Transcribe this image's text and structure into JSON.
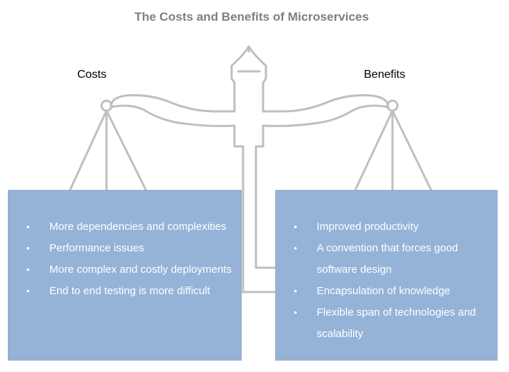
{
  "title": "The Costs and Benefits of Microservices",
  "costs": {
    "label": "Costs",
    "items": [
      "More dependencies and complexities",
      "Performance issues",
      "More complex and costly deployments",
      "End to end testing is more difficult"
    ]
  },
  "benefits": {
    "label": "Benefits",
    "items": [
      "Improved productivity",
      "A convention that forces good software design",
      "Encapsulation of knowledge",
      "Flexible span of technologies and scalability"
    ]
  },
  "colors": {
    "panel": "#95b3d7",
    "scale_outline": "#bfbfbf",
    "title": "#7f7f7f"
  },
  "icons": {
    "bullet": "•"
  }
}
